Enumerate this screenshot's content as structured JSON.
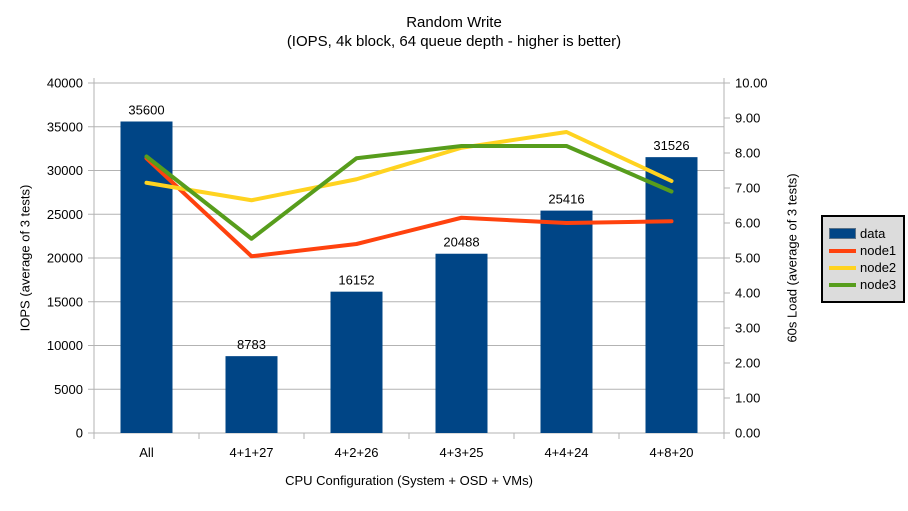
{
  "title": {
    "line1": "Random Write",
    "line2": "(IOPS, 4k block, 64 queue depth - higher is better)"
  },
  "chart_data": {
    "type": "bar+line combo",
    "categories": [
      "All",
      "4+1+27",
      "4+2+26",
      "4+3+25",
      "4+4+24",
      "4+8+20"
    ],
    "bar_series": {
      "name": "data",
      "color": "#004586",
      "axis": "left",
      "values": [
        35600,
        8783,
        16152,
        20488,
        25416,
        31526
      ],
      "data_labels": [
        "35600",
        "8783",
        "16152",
        "20488",
        "25416",
        "31526"
      ]
    },
    "line_series": [
      {
        "name": "node1",
        "color": "#ff420e",
        "axis": "right",
        "values": [
          7.85,
          5.05,
          5.4,
          6.15,
          6.0,
          6.05
        ]
      },
      {
        "name": "node2",
        "color": "#ffd320",
        "axis": "right",
        "values": [
          7.15,
          6.65,
          7.25,
          8.15,
          8.6,
          7.2
        ]
      },
      {
        "name": "node3",
        "color": "#579d1c",
        "axis": "right",
        "values": [
          7.9,
          5.55,
          7.85,
          8.2,
          8.2,
          6.9
        ]
      }
    ],
    "left_axis": {
      "label": "IOPS (average of 3 tests)",
      "min": 0,
      "max": 40000,
      "step": 5000,
      "tick_labels": [
        "0",
        "5000",
        "10000",
        "15000",
        "20000",
        "25000",
        "30000",
        "35000",
        "40000"
      ]
    },
    "right_axis": {
      "label": "60s Load (average of 3 tests)",
      "min": 0,
      "max": 10,
      "step": 1,
      "tick_labels": [
        "0.00",
        "1.00",
        "2.00",
        "3.00",
        "4.00",
        "5.00",
        "6.00",
        "7.00",
        "8.00",
        "9.00",
        "10.00"
      ]
    },
    "x_axis": {
      "label": "CPU Configuration (System + OSD + VMs)"
    },
    "legend": {
      "position": "right",
      "entries": [
        {
          "label": "data",
          "color": "#004586",
          "swatch": "box"
        },
        {
          "label": "node1",
          "color": "#ff420e",
          "swatch": "line"
        },
        {
          "label": "node2",
          "color": "#ffd320",
          "swatch": "line"
        },
        {
          "label": "node3",
          "color": "#579d1c",
          "swatch": "line"
        }
      ]
    },
    "grid": true,
    "colors": {
      "grid": "#b3b3b3",
      "axis": "#b3b3b3",
      "text": "#000000",
      "background": "#ffffff",
      "legend_bg": "#dcdcdc",
      "legend_border": "#000000"
    }
  }
}
